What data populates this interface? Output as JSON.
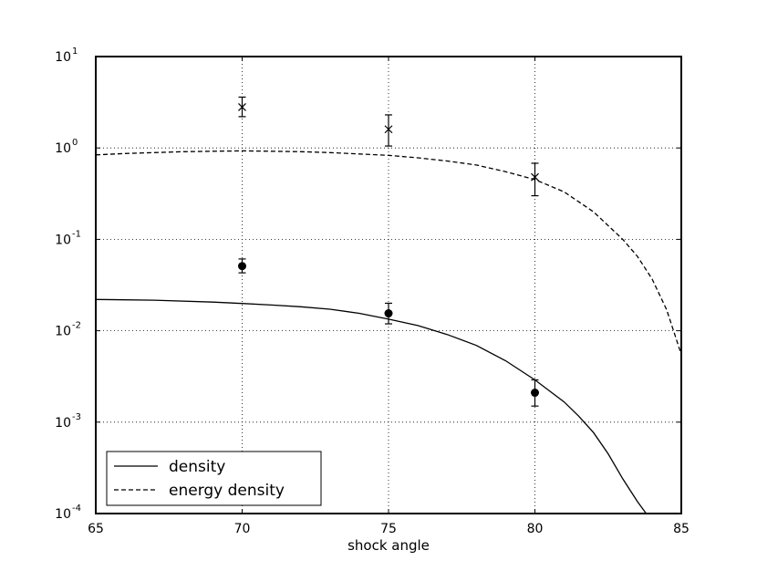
{
  "chart_data": {
    "type": "scatter",
    "title": "",
    "xlabel": "shock angle",
    "ylabel": "",
    "xlim": [
      65,
      85
    ],
    "ylim": [
      0.0001,
      10
    ],
    "yscale": "log",
    "grid": true,
    "x_ticks": [
      "65",
      "70",
      "75",
      "80",
      "85"
    ],
    "y_ticks": [
      {
        "value": 0.0001,
        "base": "10",
        "exp": "-4"
      },
      {
        "value": 0.001,
        "base": "10",
        "exp": "-3"
      },
      {
        "value": 0.01,
        "base": "10",
        "exp": "-2"
      },
      {
        "value": 0.1,
        "base": "10",
        "exp": "-1"
      },
      {
        "value": 1,
        "base": "10",
        "exp": "0"
      },
      {
        "value": 10,
        "base": "10",
        "exp": "1"
      }
    ],
    "legend": {
      "position": "lower-left",
      "entries": [
        {
          "label": "density",
          "style": "solid"
        },
        {
          "label": "energy density",
          "style": "dashed"
        }
      ]
    },
    "lines": [
      {
        "name": "density",
        "style": "solid",
        "points": [
          [
            65,
            0.022
          ],
          [
            67,
            0.0216
          ],
          [
            69,
            0.0206
          ],
          [
            70,
            0.0199
          ],
          [
            71,
            0.0191
          ],
          [
            72,
            0.0183
          ],
          [
            73,
            0.0172
          ],
          [
            74,
            0.0155
          ],
          [
            75,
            0.0134
          ],
          [
            76,
            0.0114
          ],
          [
            77,
            0.0091
          ],
          [
            78,
            0.0069
          ],
          [
            79,
            0.0047
          ],
          [
            80,
            0.0029
          ],
          [
            81,
            0.00166
          ],
          [
            81.5,
            0.00116
          ],
          [
            82,
            0.00077
          ],
          [
            82.5,
            0.00045
          ],
          [
            83,
            0.00024
          ],
          [
            83.5,
            0.000135
          ],
          [
            83.8,
            0.0001
          ]
        ]
      },
      {
        "name": "energy density",
        "style": "dashed",
        "points": [
          [
            65,
            0.84
          ],
          [
            66,
            0.87
          ],
          [
            67,
            0.89
          ],
          [
            68,
            0.91
          ],
          [
            69,
            0.92
          ],
          [
            70,
            0.93
          ],
          [
            71,
            0.92
          ],
          [
            72,
            0.91
          ],
          [
            73,
            0.89
          ],
          [
            74,
            0.86
          ],
          [
            75,
            0.83
          ],
          [
            76,
            0.78
          ],
          [
            77,
            0.72
          ],
          [
            78,
            0.65
          ],
          [
            79,
            0.55
          ],
          [
            80,
            0.45
          ],
          [
            81,
            0.33
          ],
          [
            82,
            0.2
          ],
          [
            83,
            0.1
          ],
          [
            83.5,
            0.065
          ],
          [
            84,
            0.037
          ],
          [
            84.5,
            0.017
          ],
          [
            85,
            0.0055
          ]
        ]
      }
    ],
    "markers": [
      {
        "marker": "cross",
        "points": [
          {
            "x": 70,
            "y": 2.8,
            "err_low": 2.2,
            "err_high": 3.6
          },
          {
            "x": 75,
            "y": 1.6,
            "err_low": 1.05,
            "err_high": 2.3
          },
          {
            "x": 80,
            "y": 0.48,
            "err_low": 0.3,
            "err_high": 0.68
          }
        ]
      },
      {
        "marker": "circle",
        "points": [
          {
            "x": 70,
            "y": 0.051,
            "err_low": 0.043,
            "err_high": 0.061
          },
          {
            "x": 75,
            "y": 0.0155,
            "err_low": 0.0119,
            "err_high": 0.02
          },
          {
            "x": 80,
            "y": 0.0021,
            "err_low": 0.0015,
            "err_high": 0.0029
          }
        ]
      }
    ]
  }
}
